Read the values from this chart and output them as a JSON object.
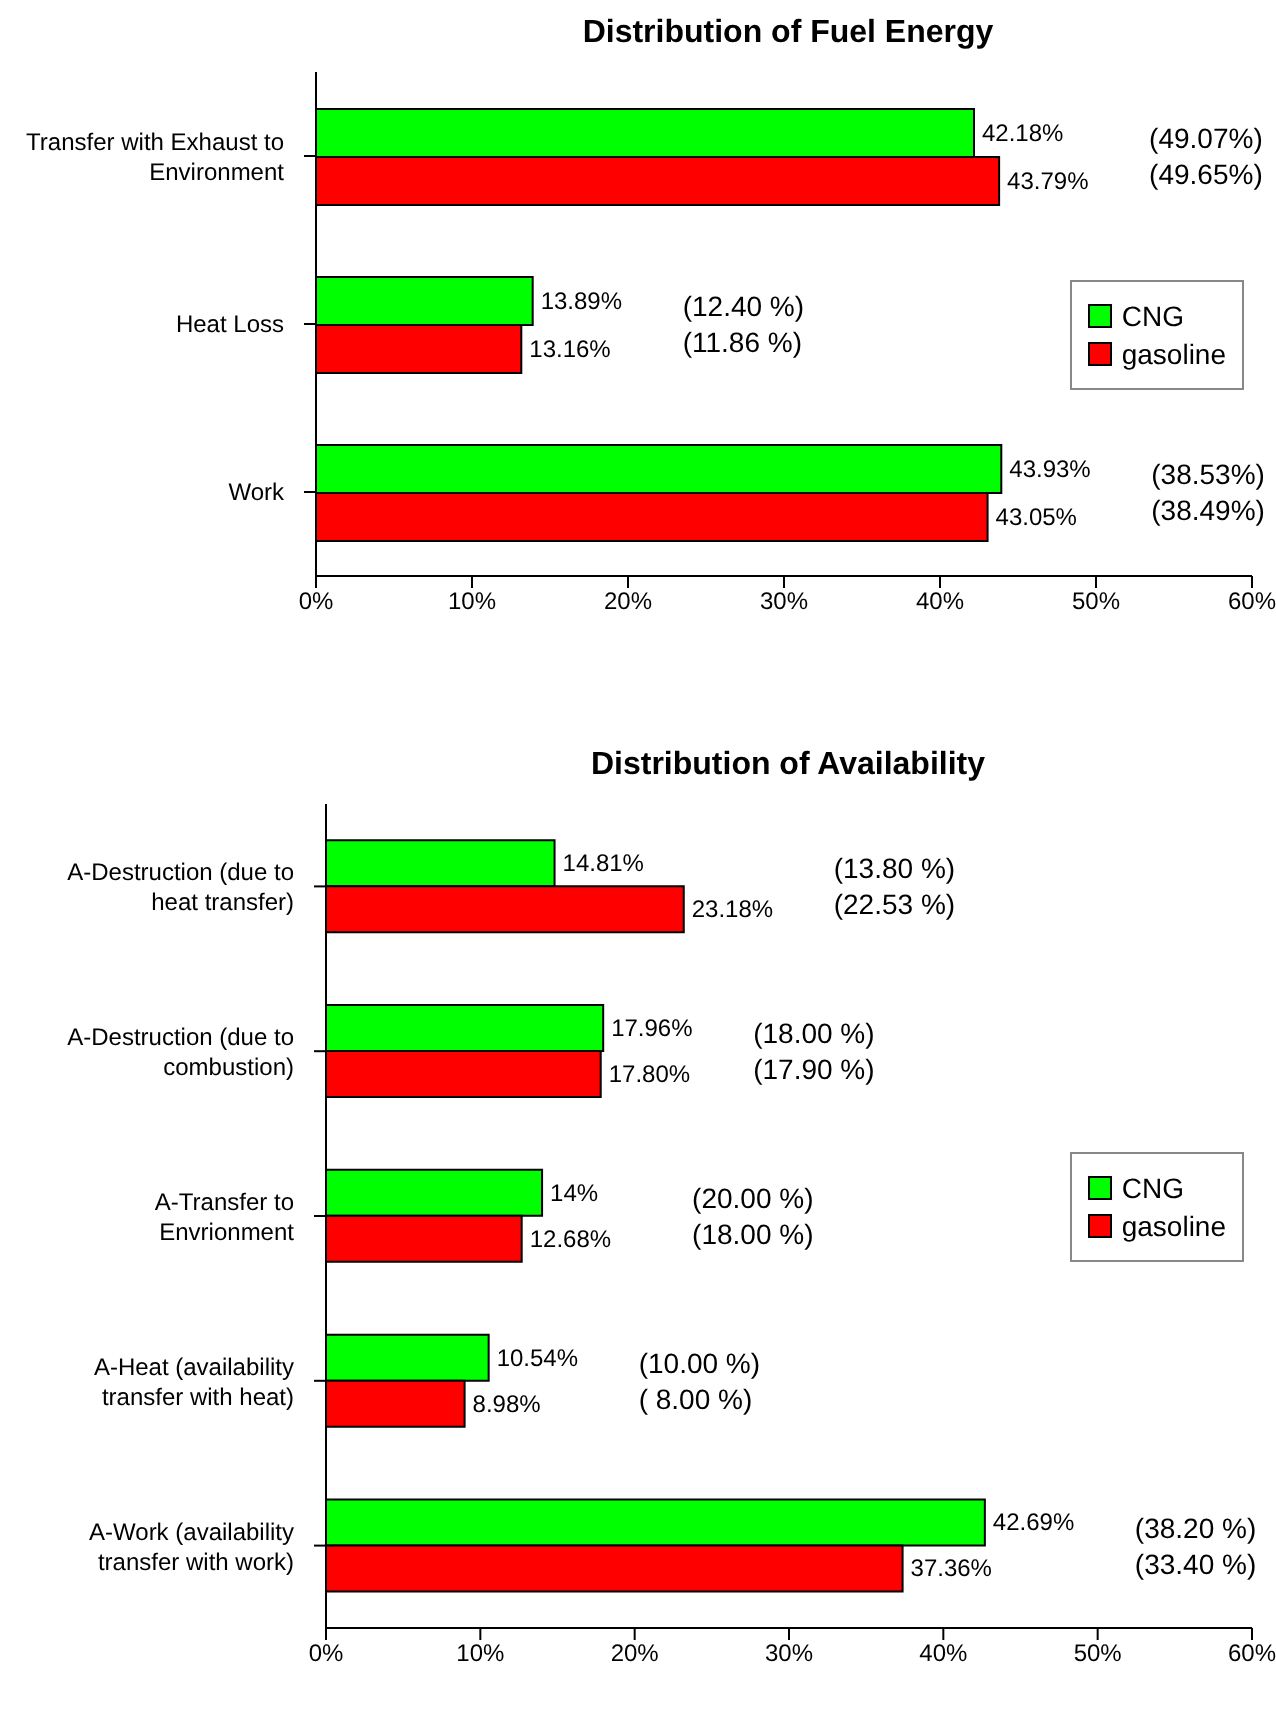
{
  "chart_data": [
    {
      "type": "bar",
      "orientation": "horizontal",
      "title": "Distribution of Fuel Energy",
      "categories": [
        "Transfer with Exhaust to Environment",
        "Heat Loss",
        "Work"
      ],
      "series": [
        {
          "name": "CNG",
          "color": "#00ff00",
          "values": [
            42.18,
            13.89,
            43.93
          ],
          "value_labels": [
            "42.18%",
            "13.89%",
            "43.93%"
          ]
        },
        {
          "name": "gasoline",
          "color": "#ff0000",
          "values": [
            43.79,
            13.16,
            43.05
          ],
          "value_labels": [
            "43.79%",
            "13.16%",
            "43.05%"
          ]
        }
      ],
      "xlim": [
        0,
        60
      ],
      "xticks": [
        {
          "value": 0,
          "label": "0%"
        },
        {
          "value": 10,
          "label": "10%"
        },
        {
          "value": 20,
          "label": "20%"
        },
        {
          "value": 30,
          "label": "30%"
        },
        {
          "value": 40,
          "label": "40%"
        },
        {
          "value": 50,
          "label": "50%"
        },
        {
          "value": 60,
          "label": "60%"
        }
      ],
      "legend": "right",
      "annotations": [
        "(49.07%)",
        "(49.65%)",
        "(12.40 %)",
        "(11.86 %)",
        "(38.53%)",
        "(38.49%)"
      ]
    },
    {
      "type": "bar",
      "orientation": "horizontal",
      "title": "Distribution of Availability",
      "categories": [
        "A-Destruction (due to heat transfer)",
        "A-Destruction (due to combustion)",
        "A-Transfer to Envrionment",
        "A-Heat (availability transfer with heat)",
        "A-Work (availability transfer with work)"
      ],
      "series": [
        {
          "name": "CNG",
          "color": "#00ff00",
          "values": [
            14.81,
            17.96,
            14,
            10.54,
            42.69
          ],
          "value_labels": [
            "14.81%",
            "17.96%",
            "14%",
            "10.54%",
            "42.69%"
          ]
        },
        {
          "name": "gasoline",
          "color": "#ff0000",
          "values": [
            23.18,
            17.8,
            12.68,
            8.98,
            37.36
          ],
          "value_labels": [
            "23.18%",
            "17.80%",
            "12.68%",
            "8.98%",
            "37.36%"
          ]
        }
      ],
      "xlim": [
        0,
        60
      ],
      "xticks": [
        {
          "value": 0,
          "label": "0%"
        },
        {
          "value": 10,
          "label": "10%"
        },
        {
          "value": 20,
          "label": "20%"
        },
        {
          "value": 30,
          "label": "30%"
        },
        {
          "value": 40,
          "label": "40%"
        },
        {
          "value": 50,
          "label": "50%"
        },
        {
          "value": 60,
          "label": "60%"
        }
      ],
      "legend": "right",
      "annotations": [
        "(13.80 %)",
        "(22.53 %)",
        "(18.00 %)",
        "(17.90 %)",
        "(20.00 %)",
        "(18.00 %)",
        "(10.00 %)",
        "( 8.00 %)",
        "(38.20 %)",
        "(33.40 %)"
      ]
    }
  ]
}
